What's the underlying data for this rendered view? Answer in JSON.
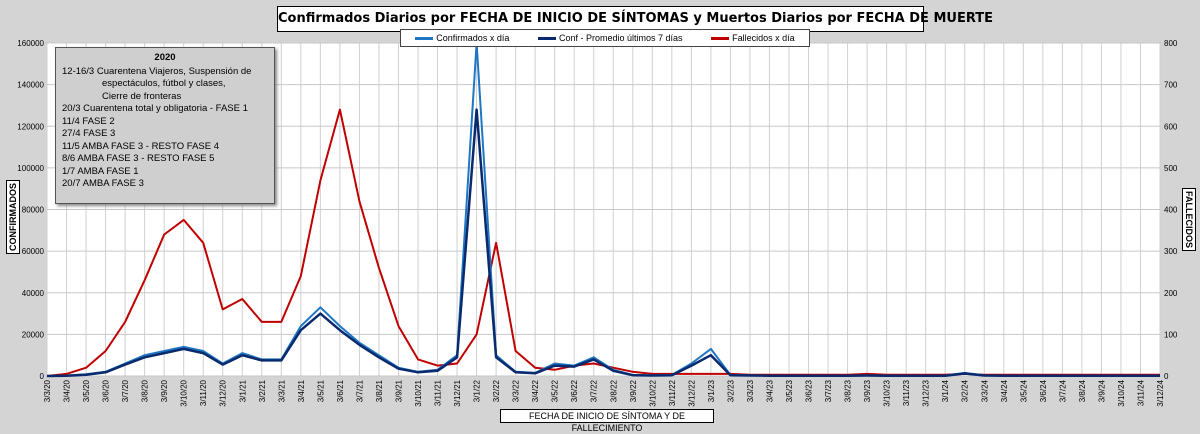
{
  "chart_data": {
    "type": "line",
    "title": "Confirmados  Diarios  por FECHA DE INICIO DE SÍNTOMAS y Muertos Diarios  por FECHA DE MUERTE",
    "xlabel": "FECHA DE INICIO DE SÍNTOMA  Y DE FALLECIMIENTO",
    "ylabel_left": "CONFIRMADOS",
    "ylabel_right": "FALLECIDOS",
    "ylim_left": [
      0,
      160000
    ],
    "ylim_right": [
      0,
      800
    ],
    "yticks_left": [
      "0",
      "20000",
      "40000",
      "60000",
      "80000",
      "100000",
      "120000",
      "140000",
      "160000"
    ],
    "yticks_right": [
      "0",
      "100",
      "200",
      "300",
      "400",
      "500",
      "600",
      "700",
      "800"
    ],
    "x_ticks": [
      "3/3/20",
      "3/4/20",
      "3/5/20",
      "3/6/20",
      "3/7/20",
      "3/8/20",
      "3/9/20",
      "3/10/20",
      "3/11/20",
      "3/12/20",
      "3/1/21",
      "3/2/21",
      "3/3/21",
      "3/4/21",
      "3/5/21",
      "3/6/21",
      "3/7/21",
      "3/8/21",
      "3/9/21",
      "3/10/21",
      "3/11/21",
      "3/12/21",
      "3/1/22",
      "3/2/22",
      "3/3/22",
      "3/4/22",
      "3/5/22",
      "3/6/22",
      "3/7/22",
      "3/8/22",
      "3/9/22",
      "3/10/22",
      "3/11/22",
      "3/12/22",
      "3/1/23",
      "3/2/23",
      "3/3/23",
      "3/4/23",
      "3/5/23",
      "3/6/23",
      "3/7/23",
      "3/8/23",
      "3/9/23",
      "3/10/23",
      "3/11/23",
      "3/12/23",
      "3/1/24",
      "3/2/24",
      "3/3/24",
      "3/4/24",
      "3/5/24",
      "3/6/24",
      "3/7/24",
      "3/8/24",
      "3/9/24",
      "3/10/24",
      "3/11/24",
      "3/12/24"
    ],
    "grid": true,
    "legend_position": "top-center",
    "series": [
      {
        "name": "Confirmados x día",
        "axis": "left",
        "color": "#1f77c4",
        "x": [
          "3/3/20",
          "3/4/20",
          "3/5/20",
          "3/6/20",
          "3/7/20",
          "3/8/20",
          "3/9/20",
          "3/10/20",
          "3/11/20",
          "3/12/20",
          "3/1/21",
          "3/2/21",
          "3/3/21",
          "3/4/21",
          "3/5/21",
          "3/6/21",
          "3/7/21",
          "3/8/21",
          "3/9/21",
          "3/10/21",
          "3/11/21",
          "3/12/21",
          "3/1/22",
          "3/2/22",
          "3/3/22",
          "3/4/22",
          "3/5/22",
          "3/6/22",
          "3/7/22",
          "3/8/22",
          "3/9/22",
          "3/10/22",
          "3/11/22",
          "3/12/22",
          "3/1/23",
          "3/2/23",
          "3/3/23",
          "3/4/23",
          "3/5/23",
          "3/6/23",
          "3/7/23",
          "3/8/23",
          "3/9/23",
          "3/10/23",
          "3/11/23",
          "3/12/23",
          "3/1/24",
          "3/2/24",
          "3/3/24",
          "3/4/24",
          "3/5/24",
          "3/6/24",
          "3/7/24",
          "3/8/24",
          "3/9/24",
          "3/10/24",
          "3/11/24",
          "3/12/24"
        ],
        "values": [
          0,
          200,
          800,
          2000,
          6000,
          10000,
          12000,
          14000,
          12000,
          6000,
          11000,
          8000,
          8000,
          24000,
          33000,
          24000,
          16000,
          10000,
          4000,
          2000,
          3000,
          10000,
          160000,
          10000,
          2000,
          1500,
          6000,
          5000,
          9000,
          3000,
          500,
          300,
          500,
          6000,
          13000,
          500,
          300,
          200,
          200,
          200,
          200,
          200,
          300,
          200,
          200,
          200,
          200,
          1500,
          300,
          200,
          100,
          100,
          100,
          100,
          100,
          100,
          100,
          100
        ]
      },
      {
        "name": "Conf - Promedio últimos 7 días",
        "axis": "left",
        "color": "#0a2a6e",
        "x": [
          "3/3/20",
          "3/4/20",
          "3/5/20",
          "3/6/20",
          "3/7/20",
          "3/8/20",
          "3/9/20",
          "3/10/20",
          "3/11/20",
          "3/12/20",
          "3/1/21",
          "3/2/21",
          "3/3/21",
          "3/4/21",
          "3/5/21",
          "3/6/21",
          "3/7/21",
          "3/8/21",
          "3/9/21",
          "3/10/21",
          "3/11/21",
          "3/12/21",
          "3/1/22",
          "3/2/22",
          "3/3/22",
          "3/4/22",
          "3/5/22",
          "3/6/22",
          "3/7/22",
          "3/8/22",
          "3/9/22",
          "3/10/22",
          "3/11/22",
          "3/12/22",
          "3/1/23",
          "3/2/23",
          "3/3/23",
          "3/4/23",
          "3/5/23",
          "3/6/23",
          "3/7/23",
          "3/8/23",
          "3/9/23",
          "3/10/23",
          "3/11/23",
          "3/12/23",
          "3/1/24",
          "3/2/24",
          "3/3/24",
          "3/4/24",
          "3/5/24",
          "3/6/24",
          "3/7/24",
          "3/8/24",
          "3/9/24",
          "3/10/24",
          "3/11/24",
          "3/12/24"
        ],
        "values": [
          0,
          150,
          600,
          1800,
          5500,
          9000,
          11000,
          13000,
          11000,
          5500,
          10000,
          7500,
          7500,
          22000,
          30000,
          22000,
          15000,
          9000,
          3500,
          1800,
          2500,
          9000,
          128000,
          9000,
          1800,
          1300,
          5000,
          4500,
          8000,
          2500,
          400,
          250,
          400,
          5000,
          10000,
          400,
          250,
          150,
          150,
          150,
          150,
          150,
          250,
          150,
          150,
          150,
          150,
          1200,
          250,
          150,
          80,
          80,
          80,
          80,
          80,
          80,
          80,
          80
        ]
      },
      {
        "name": "Fallecidos x día",
        "axis": "right",
        "color": "#c00000",
        "x": [
          "3/3/20",
          "3/4/20",
          "3/5/20",
          "3/6/20",
          "3/7/20",
          "3/8/20",
          "3/9/20",
          "3/10/20",
          "3/11/20",
          "3/12/20",
          "3/1/21",
          "3/2/21",
          "3/3/21",
          "3/4/21",
          "3/5/21",
          "3/6/21",
          "3/7/21",
          "3/8/21",
          "3/9/21",
          "3/10/21",
          "3/11/21",
          "3/12/21",
          "3/1/22",
          "3/2/22",
          "3/3/22",
          "3/4/22",
          "3/5/22",
          "3/6/22",
          "3/7/22",
          "3/8/22",
          "3/9/22",
          "3/10/22",
          "3/11/22",
          "3/12/22",
          "3/1/23",
          "3/2/23",
          "3/3/23",
          "3/4/23",
          "3/5/23",
          "3/6/23",
          "3/7/23",
          "3/8/23",
          "3/9/23",
          "3/10/23",
          "3/11/23",
          "3/12/23",
          "3/1/24",
          "3/2/24",
          "3/3/24",
          "3/4/24",
          "3/5/24",
          "3/6/24",
          "3/7/24",
          "3/8/24",
          "3/9/24",
          "3/10/24",
          "3/11/24",
          "3/12/24"
        ],
        "values": [
          0,
          5,
          20,
          60,
          130,
          230,
          340,
          375,
          320,
          160,
          185,
          130,
          130,
          240,
          470,
          640,
          420,
          260,
          120,
          40,
          25,
          30,
          100,
          320,
          60,
          20,
          15,
          25,
          30,
          20,
          10,
          5,
          5,
          5,
          5,
          5,
          3,
          3,
          3,
          3,
          3,
          3,
          5,
          3,
          3,
          3,
          3,
          5,
          3,
          3,
          3,
          3,
          3,
          3,
          3,
          3,
          3,
          3
        ]
      }
    ]
  },
  "annotations": {
    "year": "2020",
    "lines": [
      "12-16/3  Cuarentena Viajeros, Suspensión de",
      "espectáculos, fútbol y clases,",
      "Cierre de fronteras",
      "20/3 Cuarentena total y obligatoria - FASE 1",
      "11/4 FASE 2",
      "27/4 FASE 3",
      "11/5 AMBA FASE 3  - RESTO FASE 4",
      "8/6 AMBA FASE 3  - RESTO FASE 5",
      "1/7 AMBA FASE 1",
      "20/7 AMBA FASE 3"
    ]
  }
}
